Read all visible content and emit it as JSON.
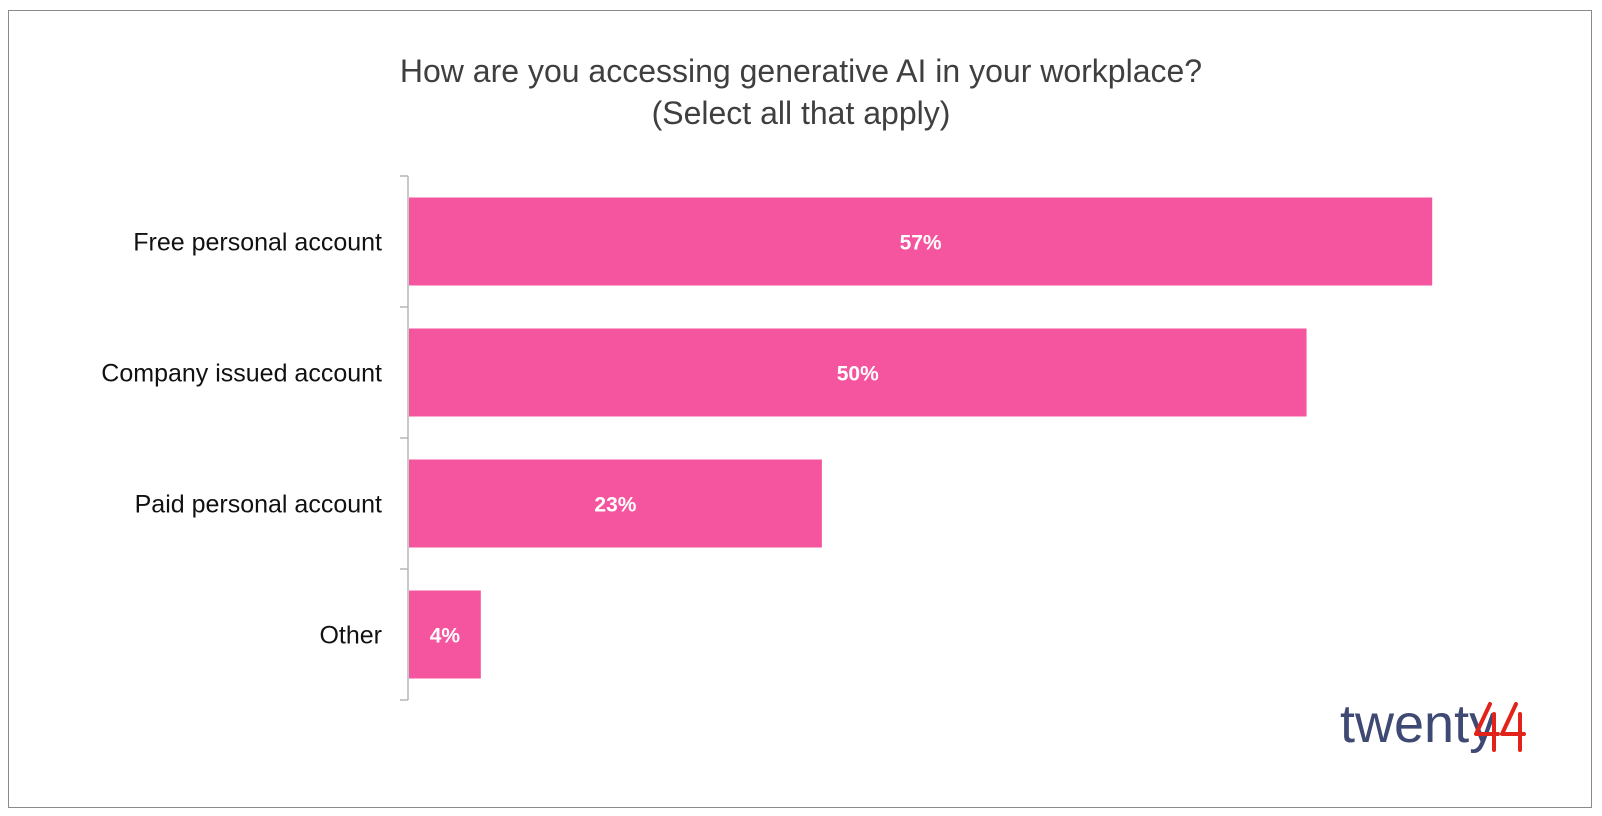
{
  "chart_data": {
    "type": "bar",
    "orientation": "horizontal",
    "title": "How are you accessing generative AI in your workplace?",
    "subtitle": "(Select all that apply)",
    "categories": [
      "Free personal account",
      "Company issued account",
      "Paid personal account",
      "Other"
    ],
    "values": [
      57,
      50,
      23,
      4
    ],
    "value_labels": [
      "57%",
      "50%",
      "23%",
      "4%"
    ],
    "xlim": [
      0,
      61
    ],
    "grid": false,
    "bar_color": "#F5559E"
  },
  "logo": {
    "text": "twenty",
    "suffix": "44",
    "text_color": "#3E4A73",
    "suffix_color": "#E2231A"
  }
}
